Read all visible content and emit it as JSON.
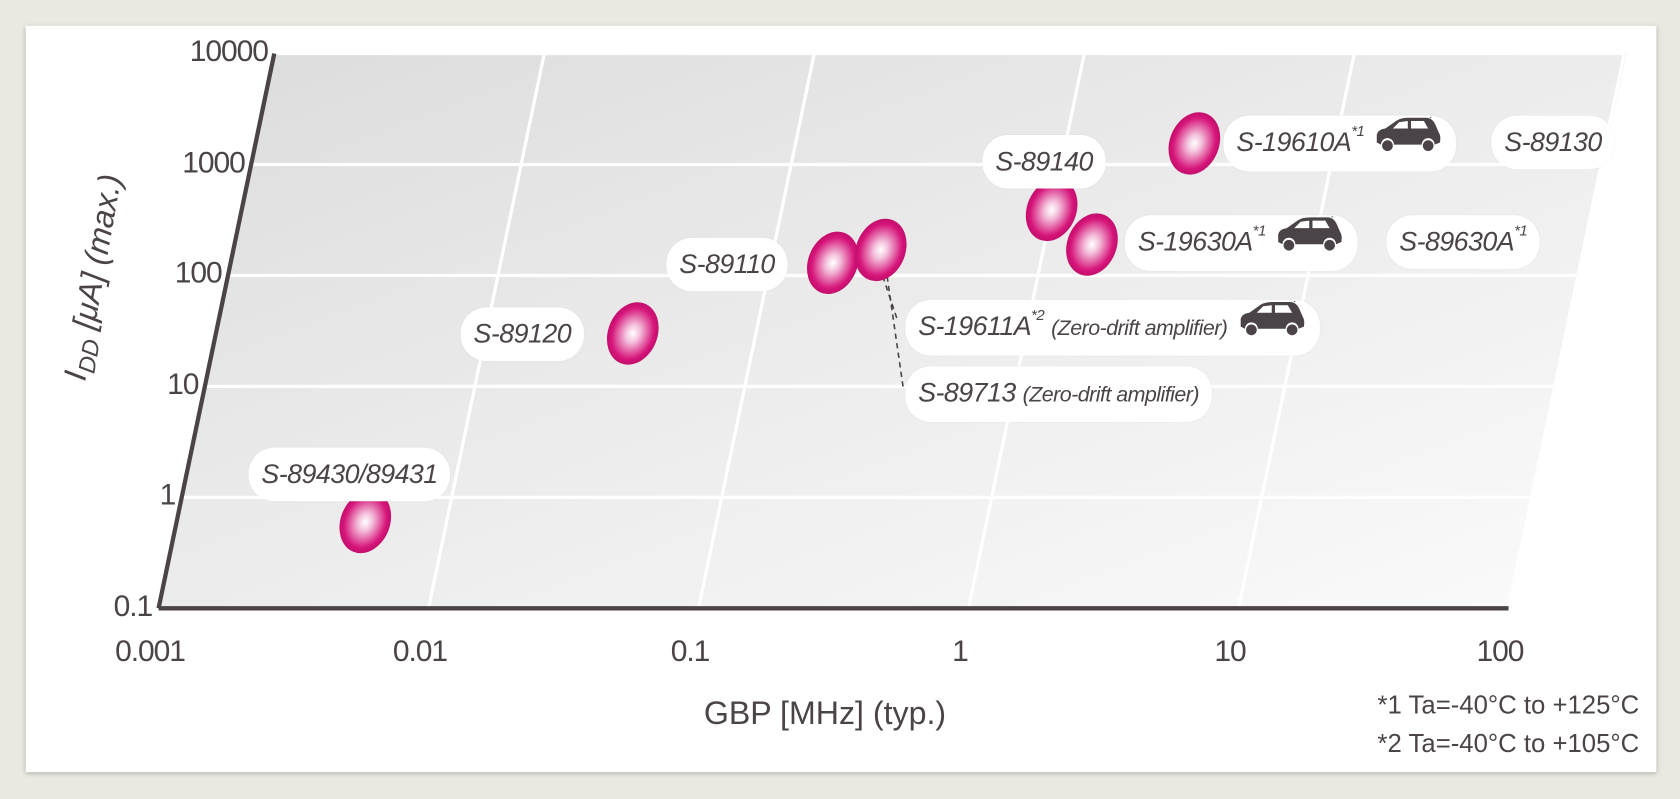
{
  "chart_data": {
    "type": "scatter",
    "xlabel": "GBP [MHz] (typ.)",
    "ylabel": {
      "main": "I",
      "sub": "DD",
      "rest": " [μA] (max.)"
    },
    "x_scale": "log",
    "y_scale": "log",
    "xlim": [
      0.001,
      100
    ],
    "ylim": [
      0.1,
      10000
    ],
    "x_ticks": [
      "0.001",
      "0.01",
      "0.1",
      "1",
      "10",
      "100"
    ],
    "y_ticks": [
      "0.1",
      "1",
      "10",
      "100",
      "1000",
      "10000"
    ],
    "grid": true,
    "marker_color": "#d6157a",
    "points": [
      {
        "x": 0.005,
        "y": 0.6,
        "labels": [
          {
            "text": "S-89430/89431"
          }
        ]
      },
      {
        "x": 0.035,
        "y": 30,
        "labels": [
          {
            "text": "S-89120"
          }
        ]
      },
      {
        "x": 0.17,
        "y": 130,
        "labels": [
          {
            "text": "S-89110"
          }
        ]
      },
      {
        "x": 0.25,
        "y": 170,
        "labels": [
          {
            "text": "S-19611A",
            "sup": "*2",
            "note": "(Zero-drift amplifier)",
            "icon": "car-icon"
          },
          {
            "text": "S-89713",
            "note": "(Zero-drift amplifier)"
          }
        ]
      },
      {
        "x": 1.0,
        "y": 390,
        "labels": [
          {
            "text": "S-89140"
          }
        ]
      },
      {
        "x": 1.5,
        "y": 190,
        "labels": [
          {
            "text": "S-19630A",
            "sup": "*1",
            "icon": "car-icon"
          },
          {
            "text": "S-89630A",
            "sup": "*1"
          }
        ]
      },
      {
        "x": 3.0,
        "y": 1550,
        "labels": [
          {
            "text": "S-19610A",
            "sup": "*1",
            "icon": "car-icon"
          },
          {
            "text": "S-89130"
          }
        ]
      }
    ],
    "footnotes": [
      "*1 Ta=-40°C to +125°C",
      "*2 Ta=-40°C to +105°C"
    ]
  }
}
